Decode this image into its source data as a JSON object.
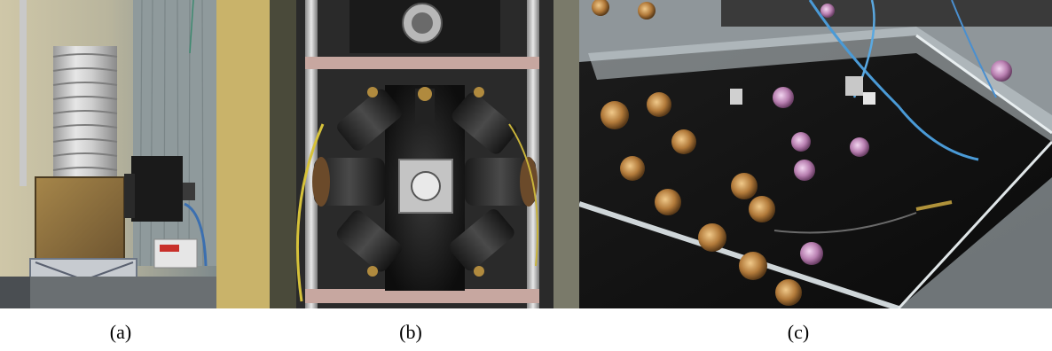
{
  "figure": {
    "panels": [
      {
        "label": "(a)",
        "subject": "cryostat-with-foil-insulation-and-electronics-box"
      },
      {
        "label": "(b)",
        "subject": "vacuum-chamber-with-radial-optical-ports"
      },
      {
        "label": "(c)",
        "subject": "optical-table-with-mirror-mounts-under-acrylic-cover"
      }
    ]
  }
}
